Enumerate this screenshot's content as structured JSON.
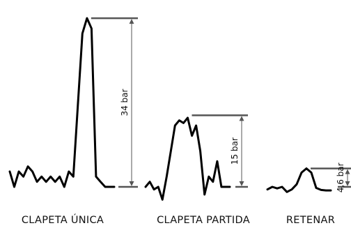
{
  "colors": {
    "trace": "#000000",
    "dimension": "#555555",
    "text": "#111111"
  },
  "chart_data": {
    "type": "line",
    "xlabel": "",
    "ylabel": "",
    "series": [
      {
        "category_label": "CLAPETA ÚNICA",
        "dimension_label": "34 bar",
        "peak_value": 34,
        "unit": "bar",
        "values": [
          4,
          1,
          4,
          3,
          5,
          4,
          2,
          3,
          2,
          3,
          2,
          3,
          1,
          4,
          3,
          17,
          31,
          34,
          32,
          3,
          2,
          1,
          1,
          1
        ]
      },
      {
        "category_label": "CLAPETA PARTIDA",
        "dimension_label": "15 bar",
        "peak_value": 15,
        "unit": "bar",
        "values": [
          1,
          2,
          0.5,
          1,
          -1.5,
          3,
          8,
          13,
          14,
          13.5,
          14.5,
          11,
          13,
          8,
          -0.5,
          3,
          2,
          6,
          1,
          1,
          1
        ]
      },
      {
        "category_label": "RETENAR",
        "dimension_label": "4,6 bar",
        "peak_value": 4.6,
        "unit": "bar",
        "values": [
          0.5,
          1,
          0.7,
          1,
          0,
          0.5,
          1.5,
          3.8,
          4.6,
          3.8,
          0.8,
          0.4,
          0.3,
          0.3
        ]
      }
    ]
  }
}
